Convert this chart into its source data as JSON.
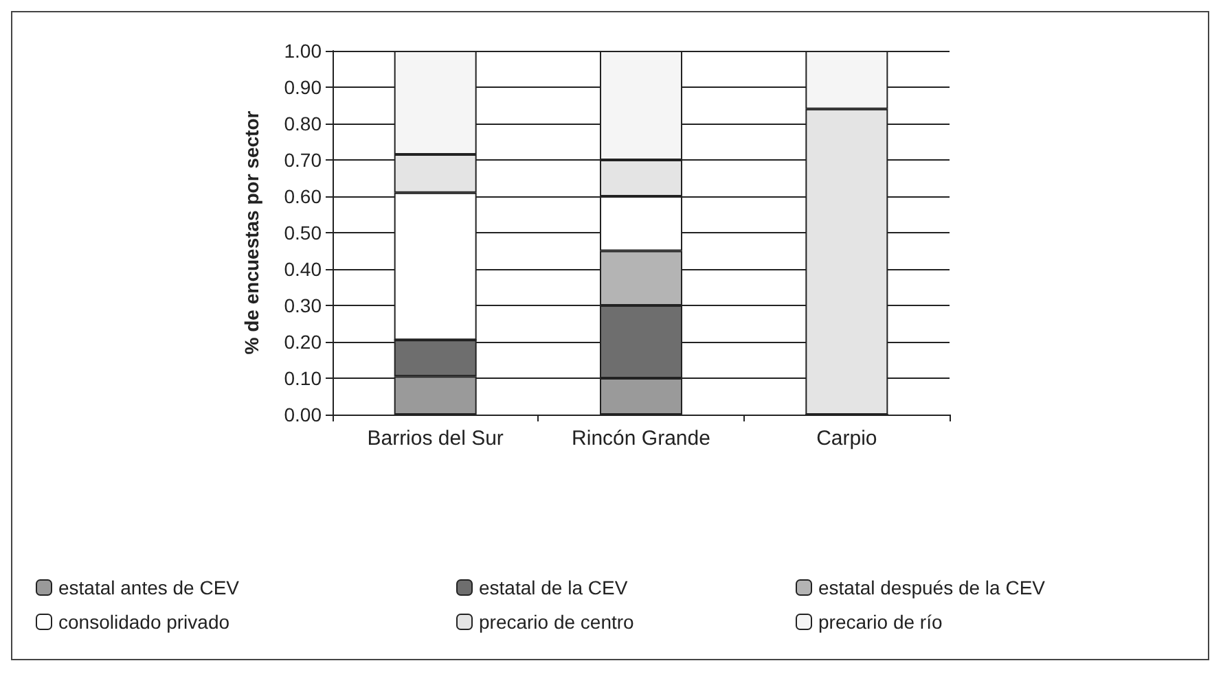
{
  "chart_data": {
    "type": "bar",
    "stacked": true,
    "ylabel": "% de encuestas por sector",
    "categories": [
      "Barrios del Sur",
      "Rincón Grande",
      "Carpio"
    ],
    "series": [
      {
        "name": "estatal antes de CEV",
        "color": "#9a9a9a",
        "values": [
          0.105,
          0.1,
          0
        ]
      },
      {
        "name": "estatal de la CEV",
        "color": "#6e6e6e",
        "values": [
          0.1,
          0.2,
          0
        ]
      },
      {
        "name": "estatal después de la CEV",
        "color": "#b4b4b4",
        "values": [
          0,
          0.15,
          0
        ]
      },
      {
        "name": "consolidado privado",
        "color": "#ffffff",
        "values": [
          0.405,
          0.15,
          0
        ]
      },
      {
        "name": "precario de centro",
        "color": "#e4e4e4",
        "values": [
          0.105,
          0.1,
          0.84
        ]
      },
      {
        "name": "precario de río",
        "color": "#f5f5f5",
        "values": [
          0.285,
          0.3,
          0.16
        ]
      }
    ],
    "ylim": [
      0,
      1
    ],
    "yticks": [
      {
        "value": 0,
        "label": "0.00"
      },
      {
        "value": 0.1,
        "label": "0.10"
      },
      {
        "value": 0.2,
        "label": "0.20"
      },
      {
        "value": 0.3,
        "label": "0.30"
      },
      {
        "value": 0.4,
        "label": "0.40"
      },
      {
        "value": 0.5,
        "label": "0.50"
      },
      {
        "value": 0.6,
        "label": "0.60"
      },
      {
        "value": 0.7,
        "label": "0.70"
      },
      {
        "value": 0.8,
        "label": "0.80"
      },
      {
        "value": 0.9,
        "label": "0.90"
      },
      {
        "value": 1,
        "label": "1.00"
      }
    ],
    "grid": "y",
    "legend": "bottom"
  }
}
